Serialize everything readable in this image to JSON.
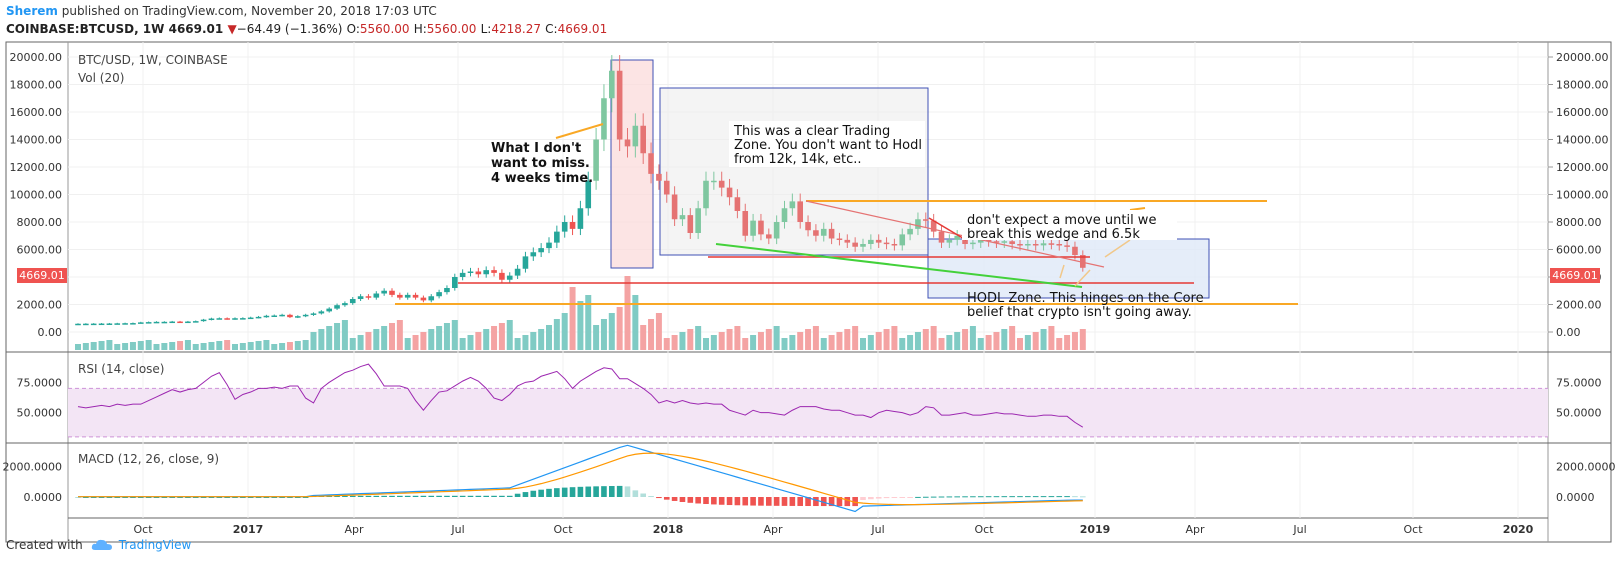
{
  "header": {
    "author": "Sherem",
    "published_text": "published on TradingView.com, November 20, 2018 17:03 UTC",
    "symbol": "COINBASE:BTCUSD, 1W",
    "last": "4669.01",
    "arrow": "▼",
    "change": "−64.49 (−1.36%)",
    "o_label": "O:",
    "o_value": "5560.00",
    "h_label": "H:",
    "h_value": "5560.00",
    "l_label": "L:",
    "l_value": "4218.27",
    "c_label": "C:",
    "c_value": "4669.01"
  },
  "footer": {
    "created_with": "Created with",
    "brand": "TradingView"
  },
  "colors": {
    "up": "#26a69a",
    "down": "#ef5350",
    "up_light": "#a5d6a7",
    "down_light": "#ef9a9a",
    "rsi": "#9c27b0",
    "macd": "#2196f3",
    "signal": "#ff9800",
    "annot_orange": "#f9a825",
    "annot_red": "#e53935",
    "annot_green": "#43d13a",
    "box_blue": "#3f51b5"
  },
  "chart_data": [
    {
      "type": "candlestick",
      "legend": [
        "BTC/USD, 1W, COINBASE",
        "Vol (20)"
      ],
      "price_badge": "4669.01",
      "ylim": [
        0,
        20000
      ],
      "yticks": [
        "20000.00",
        "18000.00",
        "16000.00",
        "14000.00",
        "12000.00",
        "10000.00",
        "8000.00",
        "6000.00",
        "4000.00",
        "2000.00",
        "0.00"
      ],
      "xticks": [
        "Oct",
        "2017",
        "Apr",
        "Jul",
        "Oct",
        "2018",
        "Apr",
        "Jul",
        "Oct",
        "2019",
        "Apr",
        "Jul",
        "Oct",
        "2020"
      ],
      "close": [
        600,
        605,
        610,
        615,
        620,
        630,
        640,
        650,
        700,
        720,
        740,
        740,
        760,
        730,
        760,
        790,
        900,
        980,
        1000,
        950,
        1000,
        1010,
        1050,
        1100,
        1180,
        1200,
        1250,
        1080,
        1150,
        1250,
        1350,
        1500,
        1700,
        1950,
        2100,
        2400,
        2600,
        2500,
        2800,
        3000,
        2700,
        2500,
        2700,
        2500,
        2300,
        2600,
        2900,
        3200,
        4000,
        4300,
        4400,
        4200,
        4500,
        4300,
        3800,
        4100,
        4600,
        5500,
        5800,
        6100,
        6500,
        7300,
        8000,
        7500,
        9000,
        11000,
        14000,
        17000,
        19000,
        14000,
        13500,
        15000,
        13000,
        11500,
        11000,
        10000,
        8200,
        8500,
        7200,
        9000,
        11000,
        11000,
        10500,
        9800,
        8800,
        7000,
        8100,
        7100,
        6800,
        8000,
        9000,
        9500,
        8000,
        7400,
        7000,
        7500,
        6800,
        6700,
        6500,
        6200,
        6400,
        6700,
        6500,
        6400,
        6300,
        7100,
        7500,
        8200,
        8100,
        7300,
        6500,
        6700,
        7000,
        6400,
        6500,
        6700,
        6600,
        6500,
        6600,
        6400,
        6300,
        6400,
        6300,
        6450,
        6400,
        6300,
        6200,
        5600,
        4669
      ],
      "volume_series_name": "Vol (20)",
      "annotations": [
        {
          "text": "What I don't want to miss. 4 weeks time."
        },
        {
          "text": "This was a clear Trading Zone. You don't want to Hodl from 12k, 14k, etc.."
        },
        {
          "text": "don't expect a move until we break this wedge and 6.5k"
        },
        {
          "text": "HODL Zone. This hinges on the Core belief that crypto isn't going away."
        }
      ],
      "levels": [
        10000,
        4200,
        2700
      ]
    },
    {
      "type": "line",
      "title": "RSI (14, close)",
      "ylim": [
        25,
        100
      ],
      "yticks": [
        "75.0000",
        "50.0000"
      ],
      "band": [
        30,
        70
      ],
      "values": [
        55,
        54,
        55,
        56,
        55,
        57,
        56,
        57,
        57,
        60,
        63,
        66,
        69,
        67,
        69,
        70,
        75,
        80,
        83,
        73,
        61,
        65,
        67,
        70,
        70,
        71,
        70,
        72,
        72,
        62,
        58,
        70,
        75,
        79,
        83,
        85,
        88,
        90,
        82,
        72,
        72,
        72,
        70,
        60,
        52,
        60,
        67,
        68,
        72,
        76,
        79,
        76,
        70,
        62,
        60,
        65,
        72,
        75,
        76,
        80,
        82,
        84,
        78,
        70,
        76,
        80,
        84,
        87,
        86,
        78,
        78,
        74,
        70,
        65,
        58,
        60,
        58,
        60,
        58,
        57,
        58,
        57,
        57,
        52,
        50,
        48,
        52,
        50,
        50,
        49,
        48,
        52,
        55,
        55,
        55,
        53,
        52,
        52,
        50,
        48,
        48,
        46,
        50,
        52,
        51,
        50,
        48,
        50,
        55,
        54,
        48,
        48,
        49,
        50,
        48,
        48,
        49,
        50,
        49,
        49,
        48,
        47,
        47,
        48,
        48,
        47,
        47,
        42,
        38
      ]
    },
    {
      "type": "line+histogram",
      "title": "MACD (12, 26, close, 9)",
      "ylim": [
        -1000,
        4000
      ],
      "yticks": [
        "2000.0000",
        "0.0000"
      ],
      "series": [
        {
          "name": "MACD"
        },
        {
          "name": "Signal"
        },
        {
          "name": "Histogram"
        }
      ]
    }
  ]
}
